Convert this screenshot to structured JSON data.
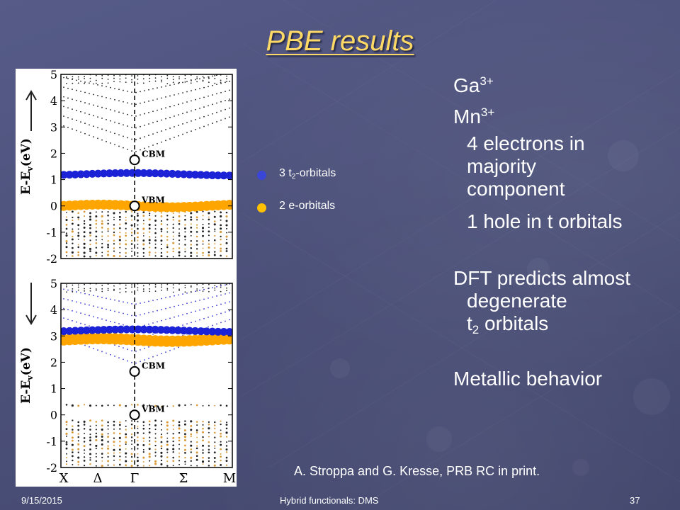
{
  "slide": {
    "title": "PBE results",
    "bullets": {
      "ga": "Ga",
      "ga_sup": "3+",
      "mn": "Mn",
      "mn_sup": "3+",
      "electrons": "4 electrons in majority component",
      "hole": "1 hole in t orbitals",
      "dft_1": "DFT predicts almost",
      "dft_2": "degenerate",
      "dft_3a": "t",
      "dft_3sub": "2",
      "dft_3b": " orbitals",
      "metallic": "Metallic behavior"
    },
    "legend": {
      "t2_pre": "3 t",
      "t2_sub": "2",
      "t2_post": "-orbitals",
      "t2_color": "#3a46d8",
      "e_label": "2 e-orbitals",
      "e_color": "#ffc000"
    },
    "citation": "A. Stroppa and G. Kresse, PRB RC in print.",
    "footer": {
      "date": "9/15/2015",
      "center": "Hybrid functionals: DMS",
      "page": "37"
    }
  },
  "chart_data": {
    "type": "scatter",
    "xticks": [
      "X",
      "Δ",
      "Γ",
      "Σ",
      "M"
    ],
    "panels": [
      {
        "name": "majority",
        "ylabel_main": "E-E",
        "ylabel_sub": "v",
        "ylabel_post": "(eV)",
        "ylim": [
          -2,
          5
        ],
        "yticks": [
          "-2",
          "-1",
          "0",
          "1",
          "2",
          "3",
          "4",
          "5"
        ],
        "annotations": [
          "CBM",
          "VBM"
        ],
        "cbm": 1.75,
        "vbm": 0.0,
        "t2_band": 1.2,
        "e_band": 0.0
      },
      {
        "name": "minority",
        "ylabel_main": "E-E",
        "ylabel_sub": "v",
        "ylabel_post": "(eV)",
        "ylim": [
          -2,
          5
        ],
        "yticks": [
          "-2",
          "-1",
          "0",
          "1",
          "2",
          "3",
          "4",
          "5"
        ],
        "annotations": [
          "CBM",
          "VBM"
        ],
        "cbm": 1.65,
        "vbm": 0.0,
        "t2_band": 3.2,
        "e_band": 2.85
      }
    ],
    "colors": {
      "t2": "#1c22d6",
      "e": "#ffa500",
      "other": "#222222",
      "orange_small": "#d99a3a"
    }
  }
}
